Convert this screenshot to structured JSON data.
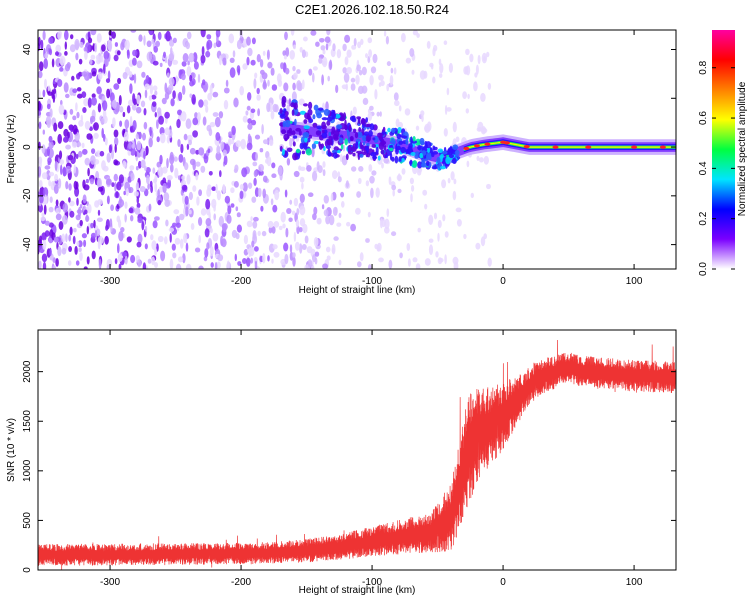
{
  "title": "C2E1.2026.102.18.50.R24",
  "chart_data": [
    {
      "type": "heatmap",
      "xlabel": "Height of straight line (km)",
      "ylabel": "Frequency (Hz)",
      "xlim": [
        -355,
        132
      ],
      "ylim": [
        -50,
        48
      ],
      "xticks": [
        "-300",
        "-200",
        "-100",
        "0",
        "100"
      ],
      "xtick_values": [
        -300,
        -200,
        -100,
        0,
        100
      ],
      "yticks": [
        "40",
        "20",
        "0",
        "-20",
        "-40"
      ],
      "ytick_values": [
        40,
        20,
        0,
        -20,
        -40
      ],
      "colorbar": {
        "label": "Normalized spectral amplitude",
        "range": [
          0,
          0.95
        ],
        "ticks": [
          "0.0",
          "0.2",
          "0.4",
          "0.6",
          "0.8"
        ],
        "tick_values": [
          0.0,
          0.2,
          0.4,
          0.6,
          0.8
        ],
        "colors": [
          "#ffffff",
          "#7a00ff",
          "#0000ff",
          "#00e5ff",
          "#00ff40",
          "#ffff00",
          "#ff8000",
          "#ff0000",
          "#ff00a0"
        ]
      },
      "features": {
        "noise_region_x": [
          -355,
          -50
        ],
        "signal_band_x": [
          -170,
          132
        ],
        "signal_center_freq": [
          {
            "x": -170,
            "y": 8
          },
          {
            "x": -140,
            "y": 6
          },
          {
            "x": -110,
            "y": 4
          },
          {
            "x": -80,
            "y": 1
          },
          {
            "x": -60,
            "y": -3
          },
          {
            "x": -45,
            "y": -5
          },
          {
            "x": -35,
            "y": -2
          },
          {
            "x": -25,
            "y": 0
          },
          {
            "x": -15,
            "y": 1
          },
          {
            "x": 0,
            "y": 2
          },
          {
            "x": 20,
            "y": 0
          },
          {
            "x": 132,
            "y": 0
          }
        ]
      }
    },
    {
      "type": "line",
      "xlabel": "Height of straight line (km)",
      "ylabel": "SNR (10 * v/v)",
      "xlim": [
        -355,
        132
      ],
      "ylim": [
        0,
        2420
      ],
      "xticks": [
        "-300",
        "-200",
        "-100",
        "0",
        "100"
      ],
      "xtick_values": [
        -300,
        -200,
        -100,
        0,
        100
      ],
      "yticks": [
        "0",
        "500",
        "1000",
        "1500",
        "2000"
      ],
      "ytick_values": [
        0,
        500,
        1000,
        1500,
        2000
      ],
      "color": "#ee3333",
      "series": [
        {
          "name": "SNR",
          "x": [
            -355,
            -300,
            -250,
            -200,
            -175,
            -150,
            -125,
            -100,
            -75,
            -55,
            -40,
            -32,
            -27,
            -20,
            -10,
            0,
            10,
            20,
            30,
            40,
            50,
            60,
            80,
            100,
            132
          ],
          "y": [
            150,
            155,
            160,
            165,
            175,
            195,
            230,
            290,
            340,
            380,
            520,
            900,
            1200,
            1350,
            1450,
            1550,
            1700,
            1850,
            1950,
            2000,
            2050,
            2000,
            1980,
            1960,
            1940
          ],
          "spread": [
            110,
            110,
            110,
            110,
            110,
            120,
            130,
            150,
            180,
            200,
            350,
            500,
            550,
            500,
            400,
            350,
            250,
            200,
            180,
            170,
            160,
            160,
            160,
            160,
            160
          ]
        }
      ]
    }
  ]
}
